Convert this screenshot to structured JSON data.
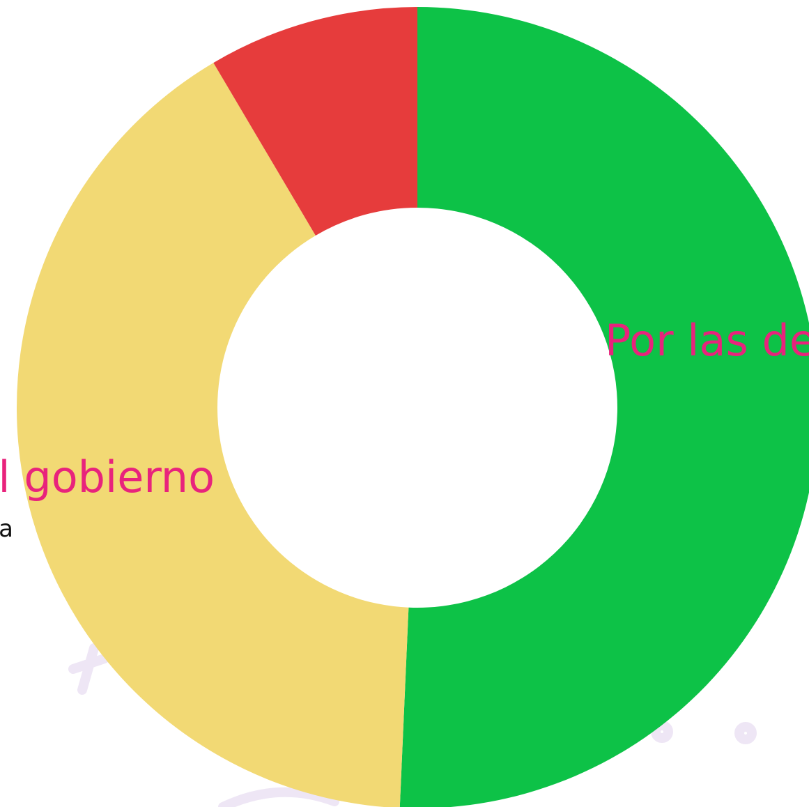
{
  "chart_data": {
    "type": "donut",
    "categories": [
      "Por las de",
      "l gobierno",
      null
    ],
    "values": [
      50.7,
      40.8,
      8.5
    ],
    "colors": [
      "#0dc247",
      "#f2d974",
      "#e63c3c"
    ],
    "annotation": "a"
  }
}
